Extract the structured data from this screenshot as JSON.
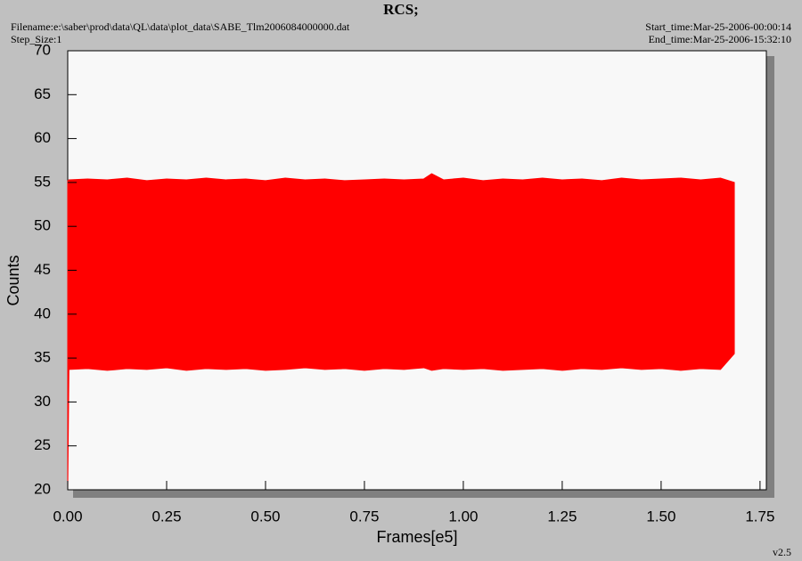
{
  "chart_data": {
    "type": "range-area",
    "title": "RCS;",
    "filename": "Filename:e:\\saber\\prod\\data\\QL\\data\\plot_data\\SABE_Tlm2006084000000.dat",
    "step_size": "Step_Size:1",
    "start_time": "Start_time:Mar-25-2006-00:00:14",
    "end_time": "End_time:Mar-25-2006-15:32:10",
    "version": "v2.5",
    "xlabel": "Frames[e5]",
    "ylabel": "Counts",
    "color": "#ff0000",
    "x": [
      0,
      0.003,
      0.05,
      0.1,
      0.15,
      0.2,
      0.25,
      0.3,
      0.35,
      0.4,
      0.45,
      0.5,
      0.55,
      0.6,
      0.65,
      0.7,
      0.75,
      0.8,
      0.85,
      0.9,
      0.92,
      0.95,
      1.0,
      1.05,
      1.1,
      1.15,
      1.2,
      1.25,
      1.3,
      1.35,
      1.4,
      1.45,
      1.5,
      1.55,
      1.6,
      1.65,
      1.685
    ],
    "high": [
      55.2,
      55.3,
      55.4,
      55.3,
      55.5,
      55.2,
      55.4,
      55.3,
      55.5,
      55.3,
      55.4,
      55.2,
      55.5,
      55.3,
      55.4,
      55.2,
      55.3,
      55.4,
      55.3,
      55.4,
      56.0,
      55.3,
      55.5,
      55.2,
      55.4,
      55.3,
      55.5,
      55.3,
      55.4,
      55.2,
      55.5,
      55.3,
      55.4,
      55.5,
      55.3,
      55.5,
      55.0
    ],
    "low": [
      20,
      33.7,
      33.8,
      33.6,
      33.8,
      33.7,
      33.9,
      33.6,
      33.8,
      33.7,
      33.8,
      33.6,
      33.7,
      33.9,
      33.7,
      33.8,
      33.6,
      33.8,
      33.7,
      33.9,
      33.6,
      33.8,
      33.7,
      33.8,
      33.6,
      33.7,
      33.8,
      33.6,
      33.8,
      33.7,
      33.9,
      33.7,
      33.8,
      33.6,
      33.8,
      33.7,
      35.5
    ],
    "xlim": [
      0,
      1.766
    ],
    "ylim": [
      20,
      70
    ],
    "xticks": [
      {
        "value": 0,
        "label": "0.00"
      },
      0.25,
      {
        "value": 0.5,
        "label": "0.50"
      },
      0.75,
      {
        "value": 1,
        "label": "1.00"
      },
      1.25,
      {
        "value": 1.5,
        "label": "1.50"
      },
      1.75
    ],
    "yticks": [
      20,
      25,
      30,
      35,
      40,
      45,
      50,
      55,
      60,
      65,
      70
    ]
  }
}
